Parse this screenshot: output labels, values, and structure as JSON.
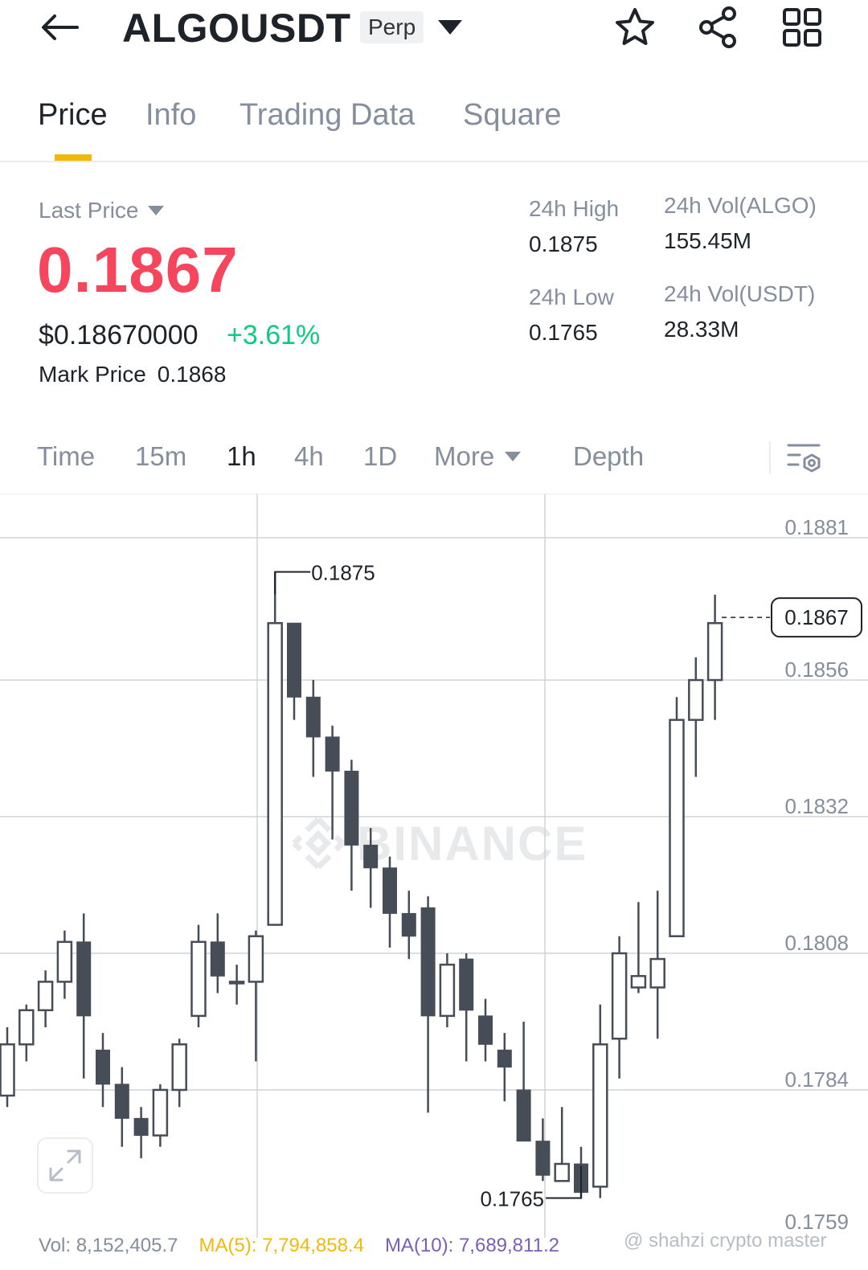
{
  "header": {
    "symbol": "ALGOUSDT",
    "badge": "Perp",
    "icons": [
      "back-arrow-icon",
      "chevron-down-icon",
      "star-icon",
      "share-icon",
      "grid-icon"
    ]
  },
  "tabs": [
    {
      "label": "Price",
      "active": true
    },
    {
      "label": "Info",
      "active": false
    },
    {
      "label": "Trading Data",
      "active": false
    },
    {
      "label": "Square",
      "active": false
    }
  ],
  "stats": {
    "last_price_label": "Last Price",
    "last_price": "0.1867",
    "usd_price": "$0.18670000",
    "change_pct": "+3.61%",
    "mark_price_label": "Mark Price",
    "mark_price": "0.1868",
    "high_label": "24h High",
    "high_value": "0.1875",
    "low_label": "24h Low",
    "low_value": "0.1765",
    "vol_algo_label": "24h Vol(ALGO)",
    "vol_algo_value": "155.45M",
    "vol_usdt_label": "24h Vol(USDT)",
    "vol_usdt_value": "28.33M"
  },
  "intervals": [
    {
      "label": "Time",
      "active": false
    },
    {
      "label": "15m",
      "active": false
    },
    {
      "label": "1h",
      "active": true
    },
    {
      "label": "4h",
      "active": false
    },
    {
      "label": "1D",
      "active": false
    },
    {
      "label": "More",
      "active": false
    },
    {
      "label": "Depth",
      "active": false
    }
  ],
  "colors": {
    "up": "#0ecb81",
    "down": "#f6465d",
    "accent": "#f0b90b",
    "candle_dark": "#474d57"
  },
  "watermark": "BINANCE",
  "chart_data": {
    "type": "candlestick",
    "ylim": [
      0.1759,
      0.1881
    ],
    "yticks": [
      "0.1881",
      "0.1856",
      "0.1832",
      "0.1808",
      "0.1784",
      "0.1759"
    ],
    "high_marker": "0.1875",
    "low_marker": "0.1765",
    "current_price_label": "0.1867",
    "candles": [
      {
        "o": 0.1783,
        "h": 0.1795,
        "l": 0.1781,
        "c": 0.1792
      },
      {
        "o": 0.1792,
        "h": 0.1799,
        "l": 0.1789,
        "c": 0.1798
      },
      {
        "o": 0.1798,
        "h": 0.1805,
        "l": 0.1795,
        "c": 0.1803
      },
      {
        "o": 0.1803,
        "h": 0.1812,
        "l": 0.18,
        "c": 0.181
      },
      {
        "o": 0.181,
        "h": 0.1815,
        "l": 0.1786,
        "c": 0.1797
      },
      {
        "o": 0.1791,
        "h": 0.1794,
        "l": 0.1781,
        "c": 0.1785
      },
      {
        "o": 0.1785,
        "h": 0.1788,
        "l": 0.1774,
        "c": 0.1779
      },
      {
        "o": 0.1779,
        "h": 0.1781,
        "l": 0.1772,
        "c": 0.1776
      },
      {
        "o": 0.1776,
        "h": 0.1785,
        "l": 0.1774,
        "c": 0.1784
      },
      {
        "o": 0.1784,
        "h": 0.1793,
        "l": 0.1781,
        "c": 0.1792
      },
      {
        "o": 0.1797,
        "h": 0.1813,
        "l": 0.1795,
        "c": 0.181
      },
      {
        "o": 0.181,
        "h": 0.1815,
        "l": 0.1801,
        "c": 0.1804
      },
      {
        "o": 0.1803,
        "h": 0.1806,
        "l": 0.1799,
        "c": 0.1803
      },
      {
        "o": 0.1803,
        "h": 0.1812,
        "l": 0.1789,
        "c": 0.1811
      },
      {
        "o": 0.1813,
        "h": 0.1875,
        "l": 0.1813,
        "c": 0.1866
      },
      {
        "o": 0.1866,
        "h": 0.1866,
        "l": 0.1849,
        "c": 0.1853
      },
      {
        "o": 0.1853,
        "h": 0.1856,
        "l": 0.1839,
        "c": 0.1846
      },
      {
        "o": 0.1846,
        "h": 0.1848,
        "l": 0.1828,
        "c": 0.184
      },
      {
        "o": 0.184,
        "h": 0.1842,
        "l": 0.1819,
        "c": 0.1827
      },
      {
        "o": 0.1827,
        "h": 0.183,
        "l": 0.1816,
        "c": 0.1823
      },
      {
        "o": 0.1823,
        "h": 0.1825,
        "l": 0.1809,
        "c": 0.1815
      },
      {
        "o": 0.1815,
        "h": 0.1819,
        "l": 0.1807,
        "c": 0.1811
      },
      {
        "o": 0.1816,
        "h": 0.1818,
        "l": 0.178,
        "c": 0.1797
      },
      {
        "o": 0.1797,
        "h": 0.1808,
        "l": 0.1795,
        "c": 0.1806
      },
      {
        "o": 0.1807,
        "h": 0.1808,
        "l": 0.1789,
        "c": 0.1798
      },
      {
        "o": 0.1797,
        "h": 0.18,
        "l": 0.1789,
        "c": 0.1792
      },
      {
        "o": 0.1791,
        "h": 0.1794,
        "l": 0.1782,
        "c": 0.1788
      },
      {
        "o": 0.1784,
        "h": 0.1796,
        "l": 0.1775,
        "c": 0.1775
      },
      {
        "o": 0.1775,
        "h": 0.1779,
        "l": 0.1768,
        "c": 0.1769
      },
      {
        "o": 0.1768,
        "h": 0.1781,
        "l": 0.1768,
        "c": 0.1771
      },
      {
        "o": 0.1771,
        "h": 0.1774,
        "l": 0.1765,
        "c": 0.1766
      },
      {
        "o": 0.1767,
        "h": 0.1799,
        "l": 0.1765,
        "c": 0.1792
      },
      {
        "o": 0.1793,
        "h": 0.1811,
        "l": 0.1786,
        "c": 0.1808
      },
      {
        "o": 0.1802,
        "h": 0.1817,
        "l": 0.1801,
        "c": 0.1804
      },
      {
        "o": 0.1802,
        "h": 0.1819,
        "l": 0.1793,
        "c": 0.1807
      },
      {
        "o": 0.1811,
        "h": 0.1853,
        "l": 0.1811,
        "c": 0.1849
      },
      {
        "o": 0.1849,
        "h": 0.186,
        "l": 0.1839,
        "c": 0.1856
      },
      {
        "o": 0.1856,
        "h": 0.1871,
        "l": 0.1849,
        "c": 0.1866
      }
    ]
  },
  "volume": {
    "vol_label": "Vol: 8,152,405.7",
    "ma5_label": "MA(5): 7,794,858.4",
    "ma10_label": "MA(10): 7,689,811.2"
  },
  "credit": "@ shahzi crypto master"
}
